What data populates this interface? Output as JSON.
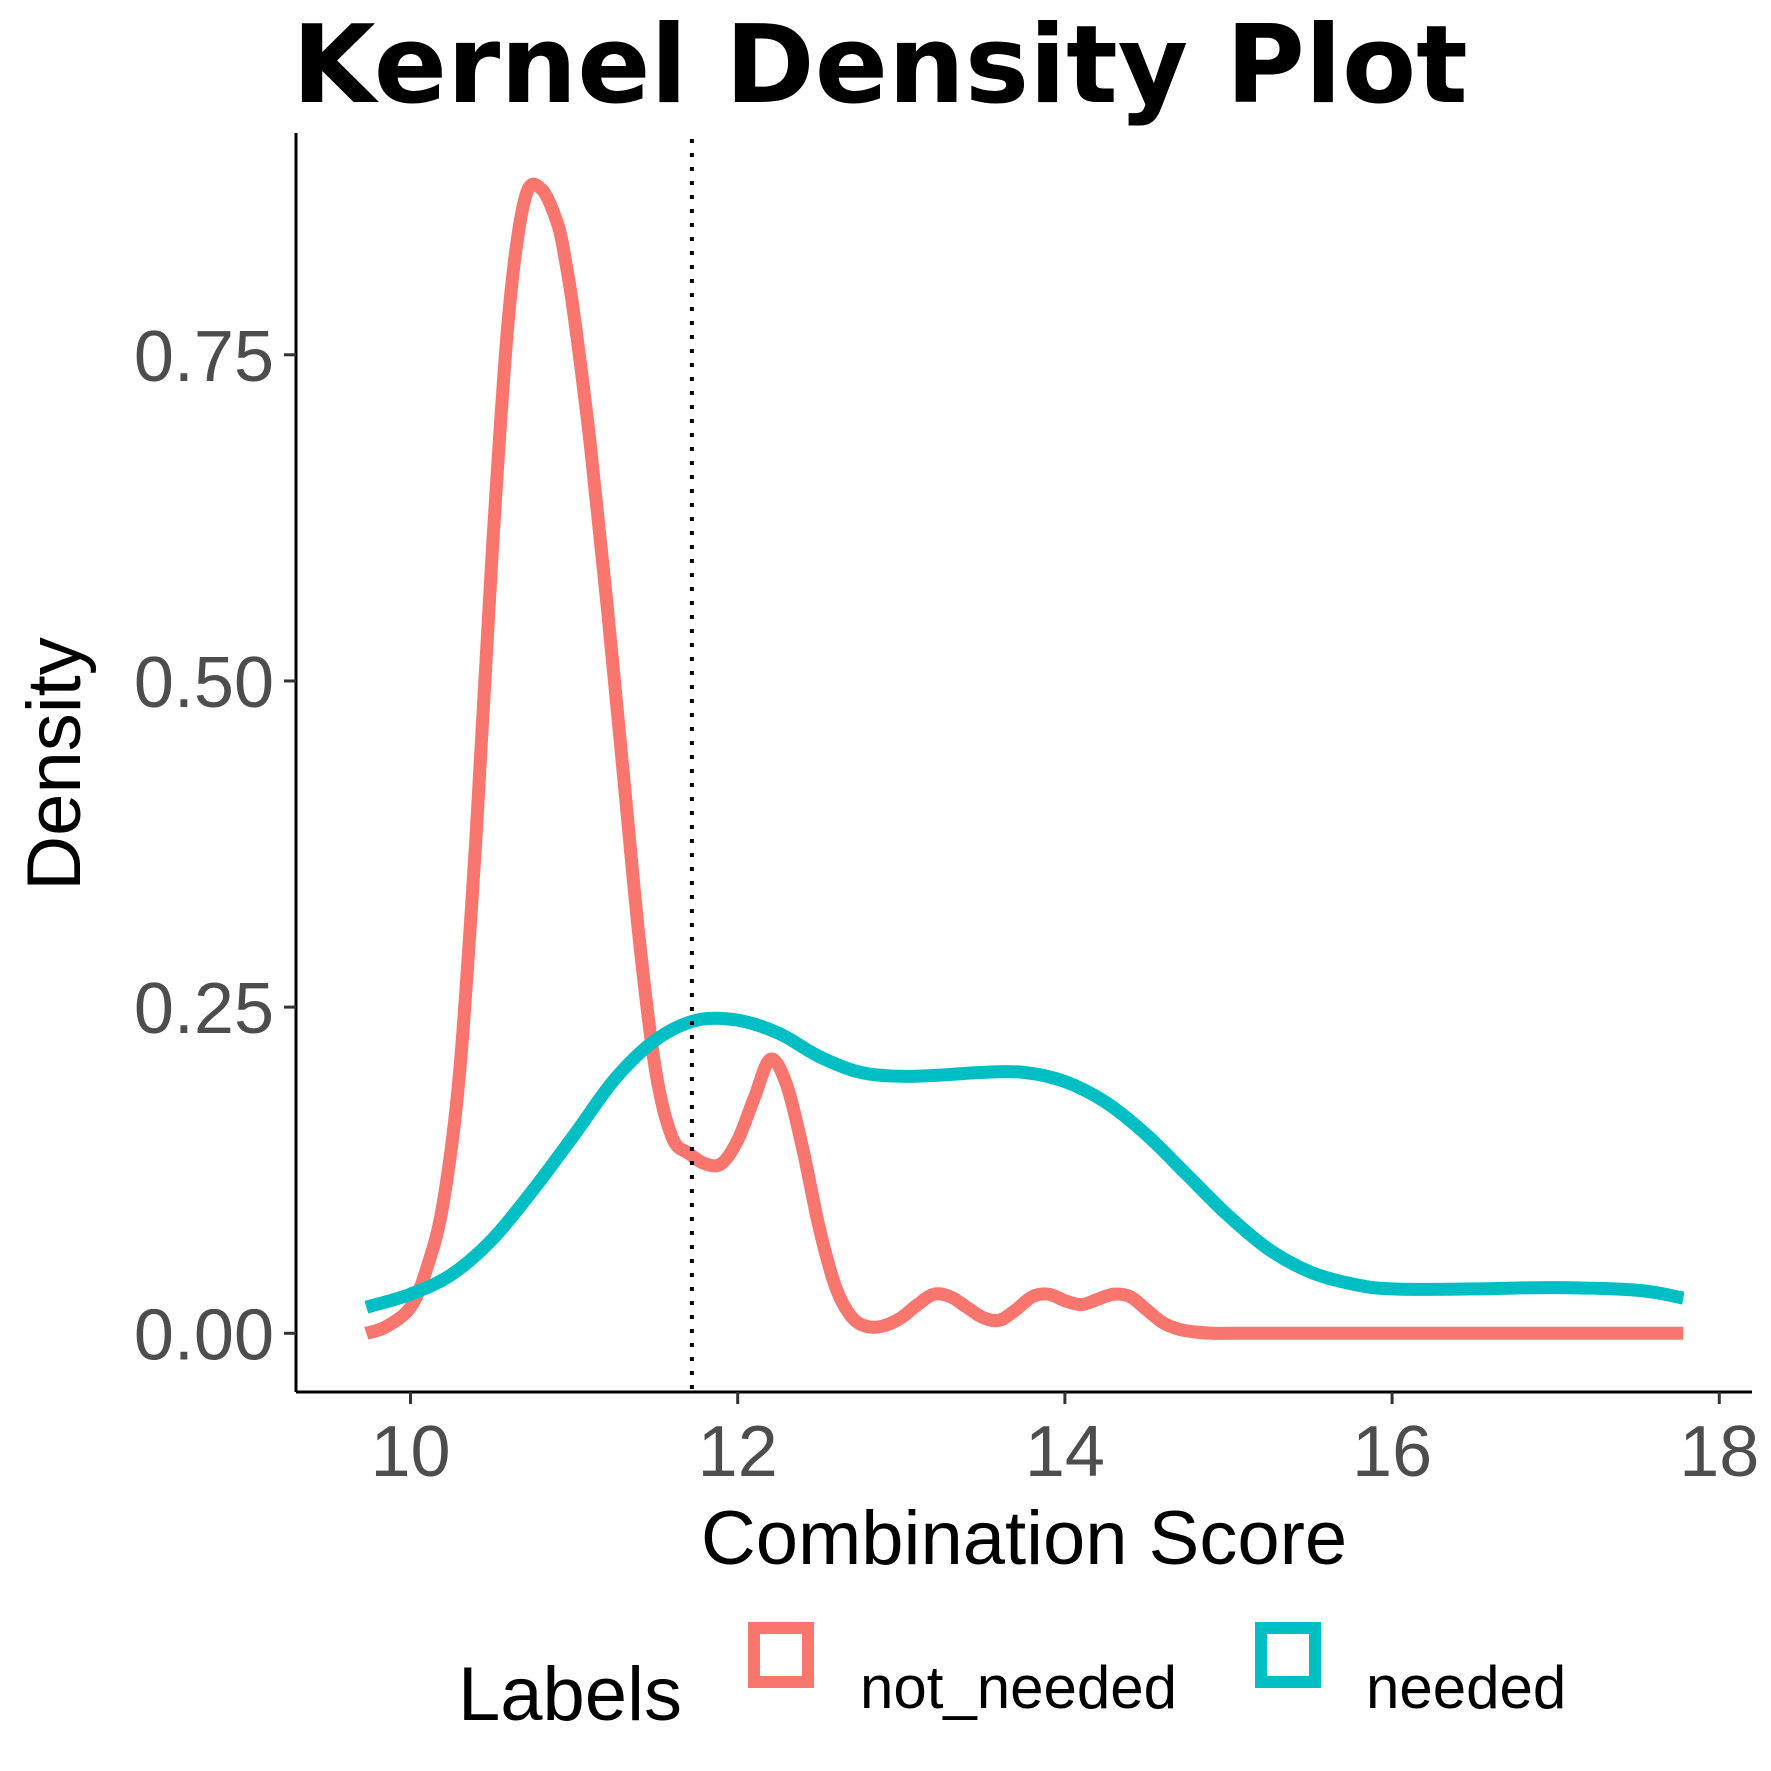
{
  "chart_data": {
    "type": "line",
    "title": "Kernel Density Plot",
    "xlabel": "Combination Score",
    "ylabel": "Density",
    "xlim": [
      9.3,
      18.2
    ],
    "ylim": [
      -0.045,
      0.92
    ],
    "x_ticks": [
      10,
      12,
      14,
      16,
      18
    ],
    "x_tick_labels": [
      "10",
      "12",
      "14",
      "16",
      "18"
    ],
    "y_ticks": [
      0,
      0.25,
      0.5,
      0.75
    ],
    "y_tick_labels": [
      "0.00",
      "0.25",
      "0.50",
      "0.75"
    ],
    "grid": false,
    "legend": {
      "title": "Labels",
      "position": "bottom",
      "entries": [
        {
          "label": "not_needed",
          "color": "#F8766D"
        },
        {
          "label": "needed",
          "color": "#00BFC4"
        }
      ]
    },
    "vline": {
      "x": 11.72,
      "style": "dotted",
      "color": "#000000"
    },
    "series": [
      {
        "name": "not_needed",
        "color": "#F8766D",
        "x": [
          9.73,
          9.85,
          10.0,
          10.1,
          10.2,
          10.3,
          10.4,
          10.5,
          10.6,
          10.7,
          10.8,
          10.9,
          10.95,
          11.0,
          11.1,
          11.2,
          11.3,
          11.4,
          11.5,
          11.6,
          11.7,
          11.8,
          11.9,
          12.0,
          12.1,
          12.2,
          12.3,
          12.4,
          12.5,
          12.6,
          12.7,
          12.8,
          12.9,
          13.0,
          13.1,
          13.2,
          13.3,
          13.4,
          13.5,
          13.6,
          13.7,
          13.8,
          13.9,
          14.0,
          14.1,
          14.2,
          14.3,
          14.4,
          14.5,
          14.6,
          14.7,
          14.8,
          14.9,
          15.0,
          15.2,
          15.5,
          16.0,
          16.5,
          17.0,
          17.5,
          17.78
        ],
        "y": [
          0.0,
          0.005,
          0.02,
          0.05,
          0.1,
          0.2,
          0.38,
          0.6,
          0.78,
          0.87,
          0.877,
          0.85,
          0.82,
          0.78,
          0.68,
          0.56,
          0.43,
          0.3,
          0.2,
          0.15,
          0.138,
          0.13,
          0.13,
          0.148,
          0.18,
          0.21,
          0.19,
          0.14,
          0.08,
          0.035,
          0.012,
          0.005,
          0.006,
          0.012,
          0.022,
          0.03,
          0.028,
          0.02,
          0.012,
          0.01,
          0.018,
          0.028,
          0.03,
          0.025,
          0.022,
          0.026,
          0.03,
          0.028,
          0.018,
          0.008,
          0.003,
          0.001,
          0.0,
          0.0,
          0.0,
          0.0,
          0.0,
          0.0,
          0.0,
          0.0,
          0.0
        ]
      },
      {
        "name": "needed",
        "color": "#00BFC4",
        "x": [
          9.73,
          10.0,
          10.25,
          10.5,
          10.75,
          11.0,
          11.25,
          11.5,
          11.75,
          12.0,
          12.25,
          12.5,
          12.75,
          13.0,
          13.25,
          13.5,
          13.75,
          14.0,
          14.25,
          14.5,
          14.75,
          15.0,
          15.25,
          15.5,
          15.75,
          16.0,
          16.5,
          17.0,
          17.5,
          17.78
        ],
        "y": [
          0.02,
          0.03,
          0.045,
          0.072,
          0.11,
          0.152,
          0.195,
          0.225,
          0.24,
          0.24,
          0.23,
          0.212,
          0.2,
          0.197,
          0.198,
          0.2,
          0.2,
          0.193,
          0.177,
          0.152,
          0.121,
          0.09,
          0.064,
          0.047,
          0.038,
          0.034,
          0.034,
          0.035,
          0.033,
          0.027
        ]
      }
    ]
  }
}
